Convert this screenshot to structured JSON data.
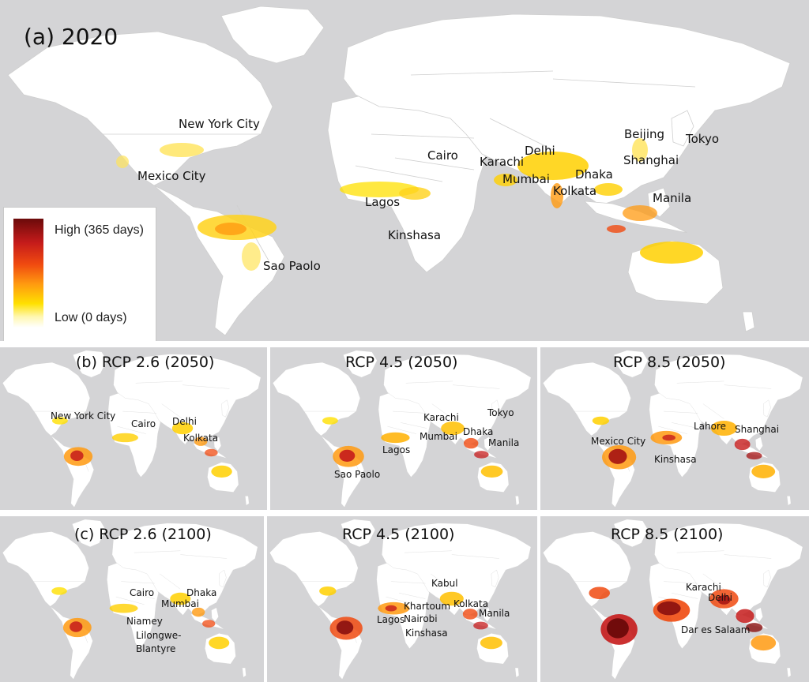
{
  "panel_a": {
    "title": "(a) 2020",
    "cities": [
      "New York City",
      "Mexico City",
      "Sao Paolo",
      "Lagos",
      "Kinshasa",
      "Cairo",
      "Karachi",
      "Delhi",
      "Mumbai",
      "Dhaka",
      "Kolkata",
      "Beijing",
      "Tokyo",
      "Shanghai",
      "Manila"
    ]
  },
  "legend": {
    "high_label": "High (365 days)",
    "low_label": "Low (0 days)"
  },
  "row_b": [
    {
      "title": "(b) RCP 2.6 (2050)",
      "cities": [
        "New York City",
        "Cairo",
        "Delhi",
        "Kolkata"
      ]
    },
    {
      "title": "RCP 4.5 (2050)",
      "cities": [
        "Karachi",
        "Tokyo",
        "Mumbai",
        "Dhaka",
        "Manila",
        "Lagos",
        "Sao Paolo"
      ]
    },
    {
      "title": "RCP 8.5 (2050)",
      "cities": [
        "Lahore",
        "Shanghai",
        "Mexico City",
        "Kinshasa"
      ]
    }
  ],
  "row_c": [
    {
      "title": "(c) RCP 2.6 (2100)",
      "cities": [
        "Cairo",
        "Dhaka",
        "Mumbai",
        "Niamey",
        "Lilongwe-",
        "Blantyre"
      ]
    },
    {
      "title": "RCP 4.5 (2100)",
      "cities": [
        "Kabul",
        "Khartoum",
        "Kolkata",
        "Nairobi",
        "Manila",
        "Lagos",
        "Kinshasa"
      ]
    },
    {
      "title": "RCP 8.5 (2100)",
      "cities": [
        "Karachi",
        "Delhi",
        "Dar es Salaam"
      ]
    }
  ],
  "colors": {
    "ocean": "#d4d4d6",
    "land": "#ffffff",
    "low": "#ffe000",
    "mid": "#ff9a10",
    "high": "#c51b1b",
    "max": "#6b0a0a"
  }
}
